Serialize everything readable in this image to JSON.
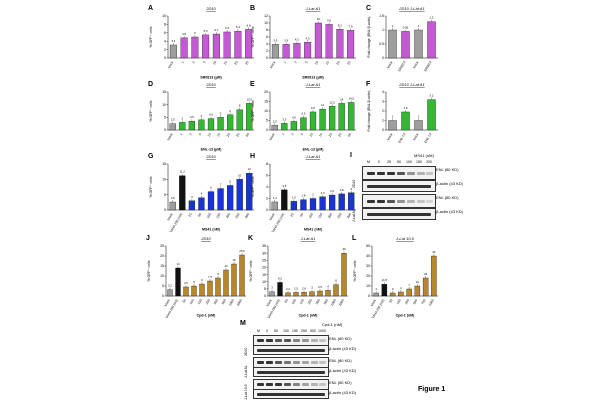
{
  "figure_caption": "Figure 1",
  "colors": {
    "mock": "#9e9e9e",
    "purple": "#c35ad3",
    "green": "#34b834",
    "blue": "#1a33d6",
    "brown": "#b8862b",
    "black": "#111111"
  },
  "panels": [
    {
      "id": "A",
      "title": "2D10",
      "ylabel": "% GFP⁺ cells",
      "xlabel": "SR0813 (µM)",
      "ymax": 10,
      "yticks": [
        0,
        2,
        4,
        6,
        8,
        10
      ],
      "categories": [
        "Mock",
        "1",
        "2",
        "5",
        "10",
        "15",
        "20",
        "25"
      ],
      "values": [
        3.1,
        4.8,
        5.0,
        5.5,
        5.7,
        6.2,
        6.4,
        6.8
      ],
      "color": "purple",
      "mockcolor": "mock"
    },
    {
      "id": "B",
      "title": "J-Lat A1",
      "ylabel": "% GFP⁺ cells",
      "xlabel": "SR0813 (µM)",
      "ymax": 12,
      "yticks": [
        0,
        2,
        4,
        6,
        8,
        10,
        12
      ],
      "categories": [
        "Mock",
        "1",
        "2",
        "5",
        "10",
        "15",
        "20",
        "25"
      ],
      "values": [
        3.9,
        3.9,
        4.2,
        4.5,
        10.0,
        9.6,
        8.2,
        7.9
      ],
      "color": "purple",
      "mockcolor": "mock"
    },
    {
      "id": "C",
      "title": "2D10     J-Lat A1",
      "ylabel": "Fold change (ENL/β-actin)",
      "xlabel": "",
      "ymax": 1.5,
      "yticks": [
        0,
        0.5,
        1.0,
        1.5
      ],
      "categories": [
        "Mock",
        "SR0813",
        "Mock",
        "SR0813"
      ],
      "values": [
        1.0,
        0.95,
        1.0,
        1.3
      ],
      "color": "purple",
      "mockcolor": "mock"
    },
    {
      "id": "D",
      "title": "2D10",
      "ylabel": "% GFP⁺ cells",
      "xlabel": "ENL-13 (µM)",
      "ymax": 15,
      "yticks": [
        0,
        5,
        10,
        15
      ],
      "categories": [
        "Mock",
        "1",
        "2",
        "5",
        "10",
        "15",
        "20",
        "25",
        "50"
      ],
      "values": [
        2.5,
        3.0,
        3.5,
        4.0,
        4.5,
        5.0,
        6.0,
        8.0,
        10.5
      ],
      "color": "green",
      "mockcolor": "mock"
    },
    {
      "id": "E",
      "title": "J-Lat A1",
      "ylabel": "% GFP⁺ cells",
      "xlabel": "ENL-13 (µM)",
      "ymax": 20,
      "yticks": [
        0,
        5,
        10,
        15,
        20
      ],
      "categories": [
        "Mock",
        "1",
        "2",
        "5",
        "10",
        "15",
        "20",
        "25",
        "50"
      ],
      "values": [
        2.5,
        3.5,
        4.5,
        6.5,
        9.5,
        11.0,
        12.5,
        14.0,
        14.5
      ],
      "color": "green",
      "mockcolor": "mock"
    },
    {
      "id": "F",
      "title": "2D10     J-Lat A1",
      "ylabel": "Fold change (ENL/β-actin)",
      "xlabel": "",
      "ymax": 4,
      "yticks": [
        0,
        1,
        2,
        3,
        4
      ],
      "categories": [
        "Mock",
        "ENL-13",
        "Mock",
        "ENL-13"
      ],
      "values": [
        1.0,
        1.9,
        1.0,
        3.2
      ],
      "color": "green",
      "mockcolor": "mock"
    },
    {
      "id": "G",
      "title": "2D10",
      "ylabel": "% GFP⁺ cells",
      "xlabel": "MS41 (nM)",
      "ymax": 15,
      "yticks": [
        0,
        5,
        10,
        15
      ],
      "categories": [
        "Mock",
        "SAHA 250 (nM)",
        "25",
        "50",
        "100",
        "150",
        "200",
        "250",
        "300"
      ],
      "values": [
        2.6,
        11.2,
        3.0,
        4.0,
        6.0,
        7.0,
        8.0,
        10.0,
        12.0
      ],
      "color": "blue",
      "mockcolor": "mock",
      "controlcolor": "black"
    },
    {
      "id": "H",
      "title": "J-Lat A1",
      "ylabel": "% GFP⁺ cells",
      "xlabel": "MS41 (nM)",
      "ymax": 8,
      "yticks": [
        0,
        2,
        4,
        6,
        8
      ],
      "categories": [
        "Mock",
        "SAHA 250 (nM)",
        "25",
        "50",
        "100",
        "150",
        "200",
        "250",
        "300"
      ],
      "values": [
        1.4,
        3.5,
        1.5,
        1.8,
        2.0,
        2.3,
        2.6,
        2.8,
        3.0
      ],
      "color": "blue",
      "mockcolor": "mock",
      "controlcolor": "black"
    },
    {
      "id": "J",
      "title": "2D10",
      "ylabel": "% GFP⁺ cells",
      "xlabel": "Cpd-1 (nM)",
      "ymax": 25,
      "yticks": [
        0,
        5,
        10,
        15,
        20,
        25
      ],
      "categories": [
        "Mock",
        "SAHA 250 (nM)",
        "50",
        "100",
        "150",
        "250",
        "300",
        "500",
        "1000",
        "2000"
      ],
      "values": [
        3.2,
        14.0,
        4.5,
        5.0,
        6.0,
        7.5,
        9.0,
        13.0,
        16.0,
        20.5
      ],
      "color": "brown",
      "mockcolor": "mock",
      "controlcolor": "black"
    },
    {
      "id": "K",
      "title": "J-Lat A1",
      "ylabel": "% GFP⁺ cells",
      "xlabel": "Cpd-1 (nM)",
      "ymax": 35,
      "yticks": [
        0,
        5,
        10,
        15,
        20,
        25,
        30,
        35
      ],
      "categories": [
        "Mock",
        "SAHA 250 (nM)",
        "50",
        "100",
        "150",
        "250",
        "300",
        "500",
        "1000",
        "2000"
      ],
      "values": [
        3.0,
        9.5,
        2.2,
        2.5,
        2.6,
        3.0,
        3.5,
        4.0,
        8.0,
        30.0
      ],
      "color": "brown",
      "mockcolor": "mock",
      "controlcolor": "black"
    },
    {
      "id": "L",
      "title": "J-Lat 10.6",
      "ylabel": "% GFP⁺ cells",
      "xlabel": "Cpd-1 (nM)",
      "ymax": 50,
      "yticks": [
        0,
        10,
        20,
        30,
        40,
        50
      ],
      "categories": [
        "Mock",
        "SAHA 250 (nM)",
        "50",
        "100",
        "250",
        "500",
        "750",
        "1000"
      ],
      "values": [
        3.0,
        11.8,
        3.0,
        4.0,
        7.0,
        10.0,
        18.0,
        40.0
      ],
      "color": "brown",
      "mockcolor": "mock",
      "controlcolor": "black"
    }
  ],
  "blot_I": {
    "label": "I",
    "header": "MS41 (nM)",
    "lanes": [
      "M",
      "0",
      "25",
      "50",
      "100",
      "150",
      "200"
    ],
    "rows": [
      {
        "cell": "2D10",
        "items": [
          "ENL (80 KD)",
          "β-actin (43 KD)"
        ]
      },
      {
        "cell": "J-Lat A1",
        "items": [
          "ENL (80 KD)",
          "β-actin (43 KD)"
        ]
      }
    ]
  },
  "blot_M": {
    "label": "M",
    "header": "Cpd-1 (nM)",
    "lanes": [
      "M",
      "0",
      "50",
      "100",
      "150",
      "250",
      "500",
      "1000"
    ],
    "rows": [
      {
        "cell": "2D10",
        "items": [
          "ENL (80 KD)",
          "β-actin (43 KD)"
        ]
      },
      {
        "cell": "J-Lat A1",
        "items": [
          "ENL (80 KD)",
          "β-actin (43 KD)"
        ]
      },
      {
        "cell": "J-Lat 10.6",
        "items": [
          "ENL (80 KD)",
          "β-actin (43 KD)"
        ]
      }
    ]
  }
}
